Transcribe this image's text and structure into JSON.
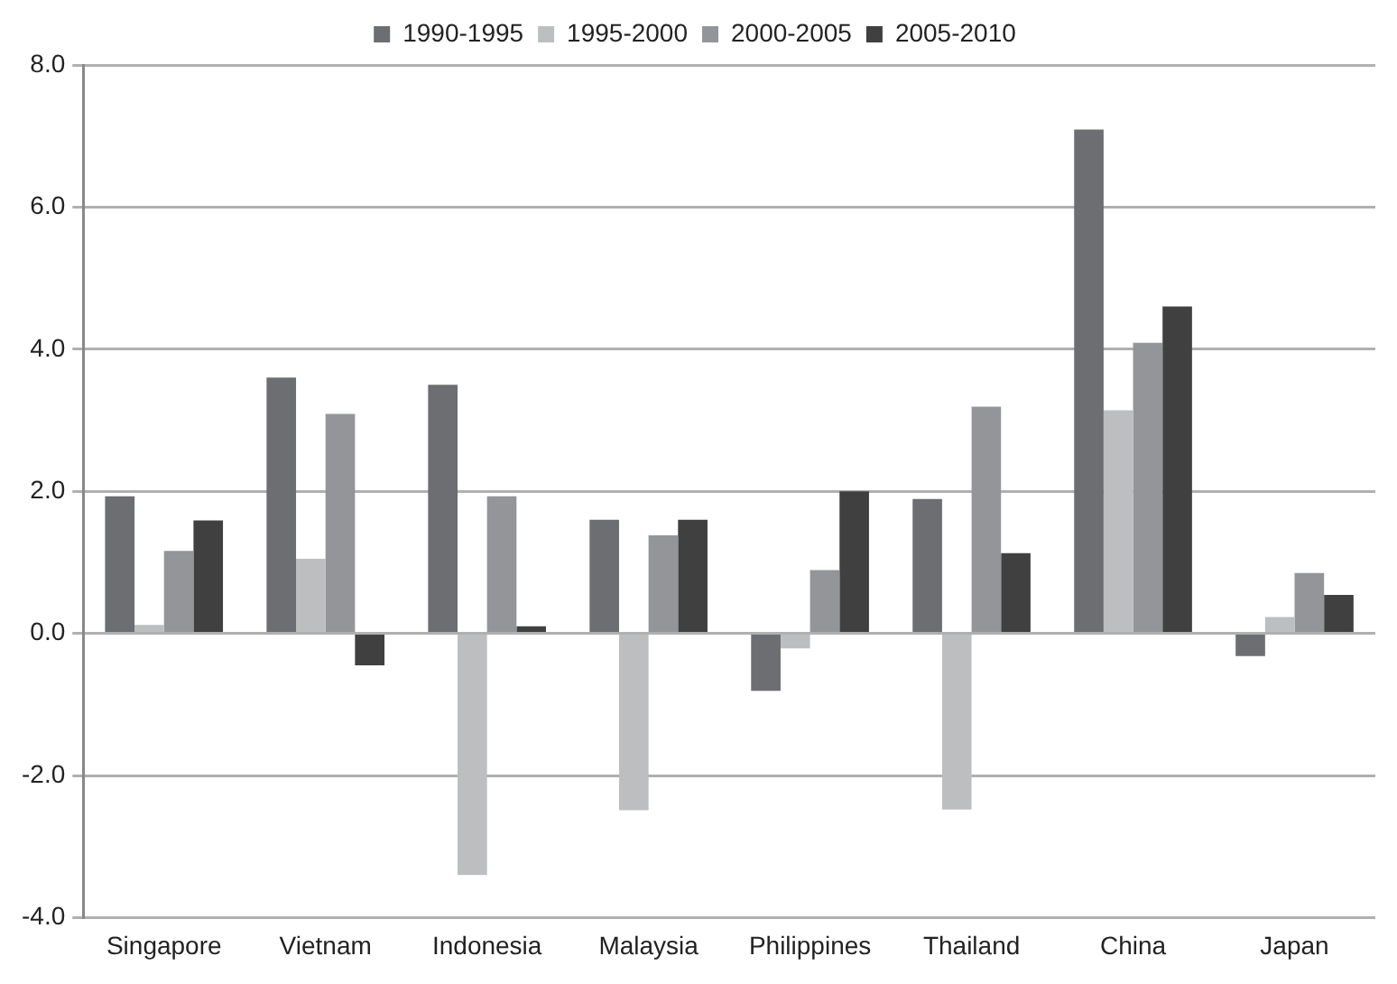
{
  "chart_data": {
    "type": "bar",
    "categories": [
      "Singapore",
      "Vietnam",
      "Indonesia",
      "Malaysia",
      "Philippines",
      "Thailand",
      "China",
      "Japan"
    ],
    "series": [
      {
        "name": "1990-1995",
        "color": "#6d6e71",
        "values": [
          1.93,
          3.6,
          3.5,
          1.6,
          -0.81,
          1.89,
          7.09,
          -0.32
        ]
      },
      {
        "name": "1995-2000",
        "color": "#bcbec0",
        "values": [
          0.12,
          1.05,
          -3.4,
          -2.49,
          -0.21,
          -2.48,
          3.14,
          0.23
        ]
      },
      {
        "name": "2000-2005",
        "color": "#939598",
        "values": [
          1.16,
          3.09,
          1.93,
          1.38,
          0.89,
          3.19,
          4.09,
          0.85
        ]
      },
      {
        "name": "2005-2010",
        "color": "#404040",
        "values": [
          1.59,
          -0.45,
          0.1,
          1.6,
          2.0,
          1.13,
          4.6,
          0.54
        ]
      }
    ],
    "ylim": [
      -4,
      8
    ],
    "yticks": [
      {
        "value": -4,
        "label": "-4.0"
      },
      {
        "value": -2,
        "label": "-2.0"
      },
      {
        "value": 0,
        "label": "0.0"
      },
      {
        "value": 2,
        "label": "2.0"
      },
      {
        "value": 4,
        "label": "4.0"
      },
      {
        "value": 6,
        "label": "6.0"
      },
      {
        "value": 8,
        "label": "8.0"
      }
    ],
    "grid": "y",
    "legend": "top"
  }
}
